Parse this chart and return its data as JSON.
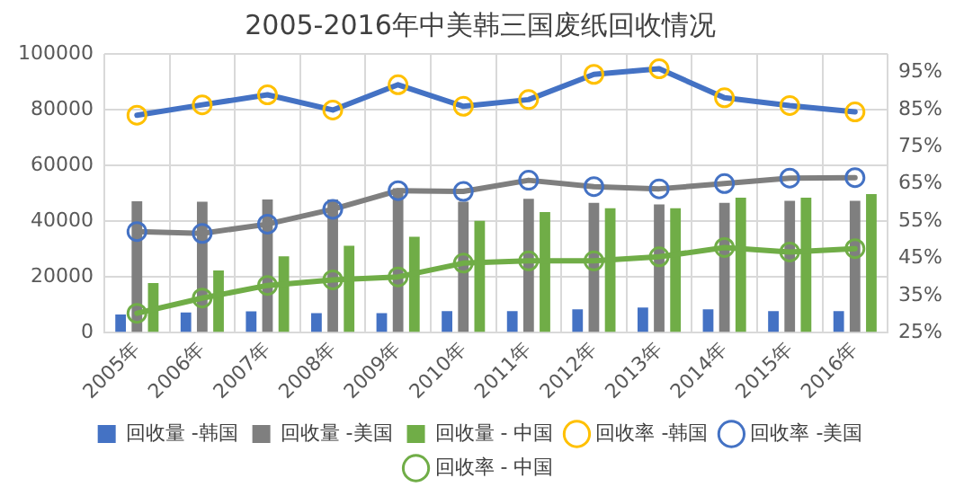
{
  "chart_data": {
    "type": "bar",
    "title": "2005-2016年中美韩三国废纸回收情况",
    "categories": [
      "2005年",
      "2006年",
      "2007年",
      "2008年",
      "2009年",
      "2010年",
      "2011年",
      "2012年",
      "2013年",
      "2014年",
      "2015年",
      "2016年"
    ],
    "series": [
      {
        "name": "回收量 -韩国",
        "color": "#4472c4",
        "values": [
          6500,
          7200,
          7600,
          7000,
          7000,
          7700,
          7700,
          8400,
          9000,
          8400,
          7700,
          7700
        ]
      },
      {
        "name": "回收量 -美国",
        "color": "#7f7f7f",
        "values": [
          47100,
          47000,
          47800,
          47800,
          51800,
          47000,
          48000,
          46600,
          46000,
          46600,
          47300,
          47300
        ]
      },
      {
        "name": "回收量 - 中国",
        "color": "#70ad47",
        "values": [
          17800,
          22300,
          27400,
          31200,
          34400,
          40100,
          43300,
          44600,
          44600,
          48400,
          48400,
          49700
        ]
      },
      {
        "name": "回收率 -韩国",
        "type": "line",
        "axis": "y2",
        "color": "#4472c4",
        "colors": [
          "#ffc000",
          "#ffc000",
          "#ffc000",
          "#ffc000",
          "#ffc000",
          "#ffc000",
          "#ffc000",
          "#ffc000",
          "#ffc000",
          "#ffc000",
          "#ffc000",
          "#ffc000"
        ],
        "values": [
          83.5,
          86.3,
          89,
          84.9,
          91.7,
          85.9,
          87.7,
          94.5,
          96,
          88.2,
          86.1,
          84.4
        ]
      },
      {
        "name": "回收率 -美国",
        "type": "line",
        "axis": "y2",
        "color": "#7f7f7f",
        "colors": [
          "#4472c4",
          "#4472c4",
          "#4472c4",
          "#4472c4",
          "#4472c4",
          "#4472c4",
          "#4472c4",
          "#4472c4",
          "#4472c4",
          "#4472c4",
          "#4472c4",
          "#4472c4"
        ],
        "values": [
          52.2,
          51.7,
          54.2,
          58.2,
          63.2,
          63,
          66,
          64.3,
          63.7,
          65.1,
          66.6,
          66.7
        ]
      },
      {
        "name": "回收率 - 中国",
        "type": "line",
        "axis": "y2",
        "color": "#70ad47",
        "colors": [
          "#70ad47",
          "#70ad47",
          "#70ad47",
          "#70ad47",
          "#70ad47",
          "#70ad47",
          "#70ad47",
          "#70ad47",
          "#70ad47",
          "#70ad47",
          "#70ad47",
          "#70ad47"
        ],
        "values": [
          30.2,
          34.3,
          37.7,
          39.2,
          40,
          43.7,
          44.3,
          44.3,
          45.4,
          47.9,
          46.7,
          47.6
        ]
      }
    ],
    "ylim": [
      0,
      100000
    ],
    "yticks": [
      0,
      20000,
      40000,
      60000,
      80000,
      100000
    ],
    "y2lim": [
      25,
      100
    ],
    "y2ticks": [
      {
        "value": 25,
        "label": "25%"
      },
      {
        "value": 35,
        "label": "35%"
      },
      {
        "value": 45,
        "label": "45%"
      },
      {
        "value": 55,
        "label": "55%"
      },
      {
        "value": 65,
        "label": "65%"
      },
      {
        "value": 75,
        "label": "75%"
      },
      {
        "value": 85,
        "label": "85%"
      },
      {
        "value": 95,
        "label": "95%"
      }
    ],
    "grid": true,
    "legend": "bottom",
    "marker": "circle",
    "line_style": "solid"
  }
}
